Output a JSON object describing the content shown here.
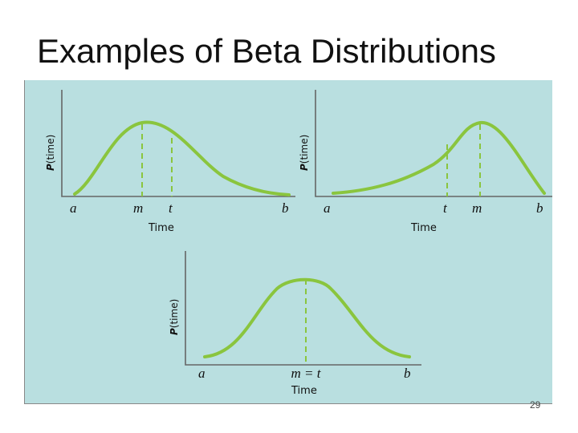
{
  "title": "Examples of Beta Distributions",
  "colors": {
    "panel_background": "#b9dfe0",
    "curve": "#8ac53e",
    "axis": "#666666"
  },
  "axis_label_y_prefix": "P",
  "axis_label_y_suffix": "(time)",
  "axis_label_x": "Time",
  "diagrams": [
    {
      "shape": "right-skewed (mode left of mean)",
      "points": {
        "a": "a",
        "m": "m",
        "t": "t",
        "b": "b"
      }
    },
    {
      "shape": "left-skewed (mode right of mean)",
      "points": {
        "a": "a",
        "t": "t",
        "m": "m",
        "b": "b"
      }
    },
    {
      "shape": "symmetric",
      "points": {
        "a": "a",
        "mt": "m = t",
        "b": "b"
      }
    }
  ],
  "page_number": "29"
}
